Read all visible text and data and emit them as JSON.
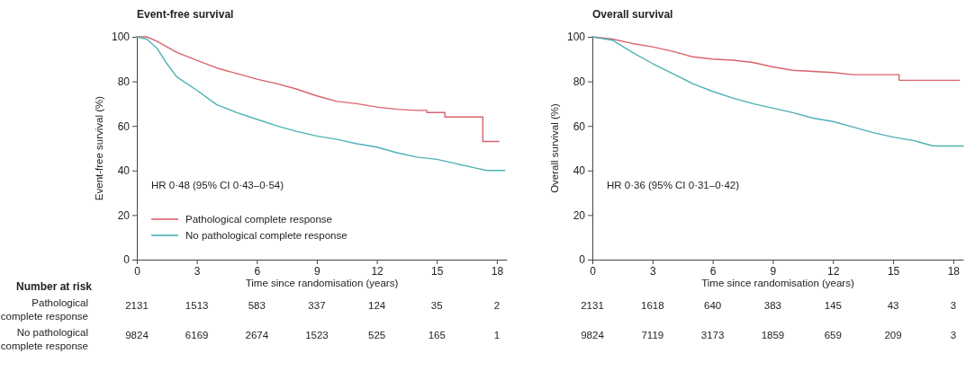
{
  "chart_data": [
    {
      "type": "line",
      "title": "Event-free survival",
      "xlabel": "Time since randomisation (years)",
      "ylabel": "Event-free survival (%)",
      "xlim": [
        0,
        18.5
      ],
      "ylim": [
        0,
        100
      ],
      "xticks": [
        0,
        3,
        6,
        9,
        12,
        15,
        18
      ],
      "yticks": [
        0,
        20,
        40,
        60,
        80,
        100
      ],
      "legend": "bottom left",
      "series": [
        {
          "name": "Pathological complete response",
          "color": "#d9636c",
          "x": [
            0,
            0.5,
            1,
            2,
            3,
            4,
            5,
            6,
            7,
            8,
            9,
            10,
            11,
            12,
            13,
            14,
            14.5,
            14.5,
            15.4,
            15.4,
            17.3,
            17.3,
            18.1
          ],
          "values": [
            100,
            100,
            98,
            93,
            89.5,
            86,
            83.5,
            81,
            79,
            76.5,
            73.5,
            71,
            70,
            68.5,
            67.5,
            67,
            67,
            66,
            66,
            64,
            64,
            53,
            53
          ]
        },
        {
          "name": "No pathological complete response",
          "color": "#4fb1b4",
          "x": [
            0,
            0.5,
            1,
            1.5,
            2,
            3,
            4,
            5,
            6,
            7,
            8,
            9,
            10,
            11,
            12,
            13,
            14,
            15,
            16,
            17,
            17.5,
            18.4
          ],
          "values": [
            100,
            99,
            95,
            88,
            82,
            76,
            69.5,
            66,
            63,
            60,
            57.5,
            55.5,
            54,
            52,
            50.5,
            48,
            46,
            45,
            43,
            41,
            40,
            40
          ]
        }
      ],
      "annotations": [
        "HR 0·48 (95% CI 0·43–0·54)",
        "Number at risk",
        "Pathological complete response",
        "No pathological complete response",
        "2131",
        "1513",
        "583",
        "337",
        "124",
        "35",
        "2",
        "9824",
        "6169",
        "2674",
        "1523",
        "525",
        "165",
        "1"
      ]
    },
    {
      "type": "line",
      "title": "Overall survival",
      "xlabel": "Time since randomisation (years)",
      "ylabel": "Overall survival (%)",
      "xlim": [
        0,
        18.5
      ],
      "ylim": [
        0,
        100
      ],
      "xticks": [
        0,
        3,
        6,
        9,
        12,
        15,
        18
      ],
      "yticks": [
        0,
        20,
        40,
        60,
        80,
        100
      ],
      "series": [
        {
          "color": "#d9636c",
          "x": [
            0,
            1,
            2,
            3,
            4,
            5,
            6,
            7,
            8,
            9,
            10,
            11,
            12,
            13,
            15.3,
            15.3,
            18.3
          ],
          "values": [
            100,
            99,
            97,
            95.5,
            93.5,
            91,
            90,
            89.5,
            88.5,
            86.5,
            85,
            84.5,
            84,
            83,
            83,
            80.5,
            80.5
          ]
        },
        {
          "color": "#4fb1b4",
          "x": [
            0,
            1,
            2,
            3,
            4,
            5,
            6,
            7,
            8,
            9,
            10,
            11,
            12,
            13,
            14,
            15,
            16,
            17,
            18.5
          ],
          "values": [
            100,
            98.5,
            93,
            88,
            83.5,
            79,
            75.5,
            72.5,
            70,
            68,
            66,
            63.5,
            62,
            59.5,
            57,
            55,
            53.5,
            51,
            51
          ]
        }
      ],
      "annotations": [
        "HR 0·36 (95% CI 0·31–0·42)",
        "2131",
        "1618",
        "640",
        "383",
        "145",
        "43",
        "3",
        "9824",
        "7119",
        "3173",
        "1859",
        "659",
        "209",
        "3"
      ]
    }
  ]
}
